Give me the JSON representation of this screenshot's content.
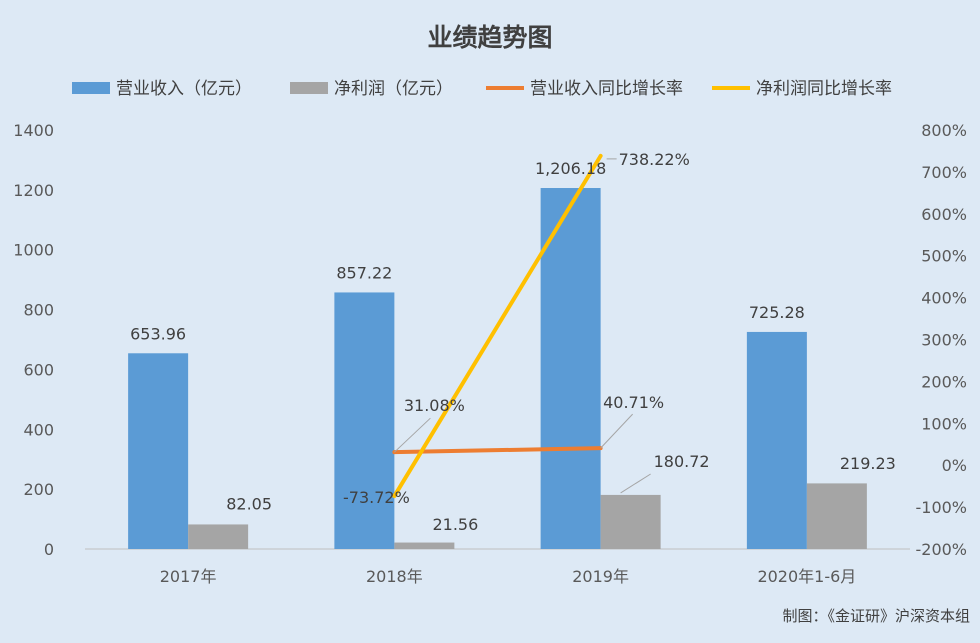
{
  "title": "业绩趋势图",
  "credit": "制图：《金证研》沪深资本组",
  "chart_data": {
    "type": "bar",
    "categories": [
      "2017年",
      "2018年",
      "2019年",
      "2020年1-6月"
    ],
    "y_left": {
      "min": 0,
      "max": 1400,
      "step": 200,
      "ticks": [
        "0",
        "200",
        "400",
        "600",
        "800",
        "1000",
        "1200",
        "1400"
      ]
    },
    "y_right": {
      "min": -200,
      "max": 800,
      "step": 100,
      "ticks": [
        "-200%",
        "-100%",
        "0%",
        "100%",
        "200%",
        "300%",
        "400%",
        "500%",
        "600%",
        "700%",
        "800%"
      ]
    },
    "legend_position": "top",
    "grid": false,
    "series": [
      {
        "name": "营业收入（亿元）",
        "type": "bar",
        "axis": "left",
        "color": "#5b9bd5",
        "values": [
          653.96,
          857.22,
          1206.18,
          725.28
        ],
        "labels": [
          "653.96",
          "857.22",
          "1,206.18",
          "725.28"
        ]
      },
      {
        "name": "净利润（亿元）",
        "type": "bar",
        "axis": "left",
        "color": "#a5a5a5",
        "values": [
          82.05,
          21.56,
          180.72,
          219.23
        ],
        "labels": [
          "82.05",
          "21.56",
          "180.72",
          "219.23"
        ]
      },
      {
        "name": "营业收入同比增长率",
        "type": "line",
        "axis": "right",
        "color": "#ed7d31",
        "values": [
          null,
          31.08,
          40.71,
          null
        ],
        "labels": [
          "",
          "31.08%",
          "40.71%",
          ""
        ]
      },
      {
        "name": "净利润同比增长率",
        "type": "line",
        "axis": "right",
        "color": "#ffc000",
        "values": [
          null,
          -73.72,
          738.22,
          null
        ],
        "labels": [
          "",
          "-73.72%",
          "738.22%",
          ""
        ]
      }
    ]
  }
}
